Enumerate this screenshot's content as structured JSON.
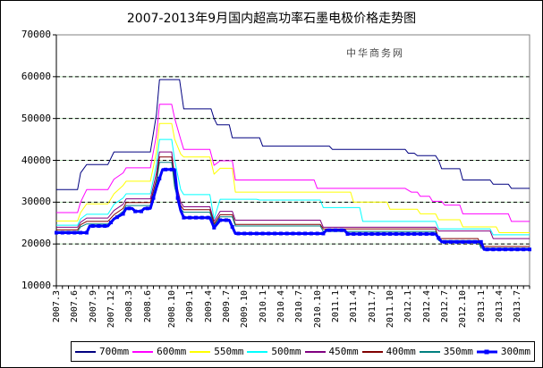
{
  "chart_data": {
    "type": "line",
    "title": "2007-2013年9月国内超高功率石墨电极价格走势图",
    "watermark": "中华商务网",
    "y_axis": {
      "min": 10000,
      "max": 70000,
      "step": 10000,
      "tick_labels": [
        "70000",
        "60000",
        "50000",
        "40000",
        "30000",
        "20000",
        "10000"
      ],
      "gridlines": [
        20000,
        30000,
        40000,
        50000,
        60000
      ],
      "grid_style": "dashed-black-over-pale-green"
    },
    "x_axis": {
      "unit": "month-index from 2007.3",
      "total_months": 78,
      "minor_tick_every": 1,
      "labels": [
        {
          "text": "2007.3",
          "m": 0
        },
        {
          "text": "2007.6",
          "m": 3
        },
        {
          "text": "2007.9",
          "m": 6
        },
        {
          "text": "2007.12",
          "m": 9
        },
        {
          "text": "2008.3",
          "m": 12
        },
        {
          "text": "2008.6",
          "m": 15
        },
        {
          "text": "2008.10",
          "m": 19
        },
        {
          "text": "2009.1",
          "m": 22
        },
        {
          "text": "2009.4",
          "m": 25
        },
        {
          "text": "2009.7",
          "m": 28
        },
        {
          "text": "2009.10",
          "m": 31
        },
        {
          "text": "2010.1",
          "m": 34
        },
        {
          "text": "2010.4",
          "m": 37
        },
        {
          "text": "2010.7",
          "m": 40
        },
        {
          "text": "2010.10",
          "m": 43
        },
        {
          "text": "2011.1",
          "m": 46
        },
        {
          "text": "2011.4",
          "m": 49
        },
        {
          "text": "2011.7",
          "m": 52
        },
        {
          "text": "2011.10",
          "m": 55
        },
        {
          "text": "2012.1",
          "m": 58
        },
        {
          "text": "2012.4",
          "m": 61
        },
        {
          "text": "2012.7",
          "m": 64
        },
        {
          "text": "2012.10",
          "m": 67
        },
        {
          "text": "2013.1",
          "m": 70
        },
        {
          "text": "2013.4",
          "m": 73
        },
        {
          "text": "2013.7",
          "m": 76
        }
      ]
    },
    "legend": {
      "position": "bottom"
    },
    "series": [
      {
        "name": "700mm",
        "color": "#000080",
        "width": 1,
        "marker": false,
        "points": [
          [
            0,
            33000
          ],
          [
            3.5,
            33000
          ],
          [
            4,
            37000
          ],
          [
            5,
            39000
          ],
          [
            8.5,
            39000
          ],
          [
            9.5,
            42000
          ],
          [
            15.5,
            42000
          ],
          [
            16.5,
            51000
          ],
          [
            17,
            59300
          ],
          [
            20.3,
            59300
          ],
          [
            21,
            52300
          ],
          [
            25.5,
            52300
          ],
          [
            26,
            50000
          ],
          [
            26.5,
            48500
          ],
          [
            28.5,
            48500
          ],
          [
            29,
            45400
          ],
          [
            33.5,
            45400
          ],
          [
            34,
            43400
          ],
          [
            45,
            43400
          ],
          [
            45.5,
            42600
          ],
          [
            57.5,
            42600
          ],
          [
            58,
            41700
          ],
          [
            59,
            41700
          ],
          [
            59.5,
            41100
          ],
          [
            62.5,
            41100
          ],
          [
            63,
            40000
          ],
          [
            63.5,
            38000
          ],
          [
            66.5,
            38000
          ],
          [
            67,
            35300
          ],
          [
            71.5,
            35300
          ],
          [
            72,
            34300
          ],
          [
            74.5,
            34300
          ],
          [
            75,
            33300
          ],
          [
            78,
            33300
          ]
        ]
      },
      {
        "name": "600mm",
        "color": "#FF00FF",
        "width": 1,
        "marker": false,
        "points": [
          [
            0,
            27500
          ],
          [
            3.5,
            27500
          ],
          [
            4,
            30000
          ],
          [
            5,
            33000
          ],
          [
            8.5,
            33000
          ],
          [
            9.5,
            35500
          ],
          [
            11,
            37000
          ],
          [
            11.5,
            38200
          ],
          [
            15.5,
            38200
          ],
          [
            16.5,
            46000
          ],
          [
            17,
            53400
          ],
          [
            19,
            53400
          ],
          [
            19.5,
            50000
          ],
          [
            20.5,
            45000
          ],
          [
            21,
            42600
          ],
          [
            25.3,
            42600
          ],
          [
            26,
            38800
          ],
          [
            27,
            39900
          ],
          [
            29,
            39900
          ],
          [
            29.5,
            35300
          ],
          [
            42.5,
            35300
          ],
          [
            43,
            33300
          ],
          [
            57.5,
            33300
          ],
          [
            58.5,
            32400
          ],
          [
            59.5,
            32400
          ],
          [
            60,
            31400
          ],
          [
            61.5,
            31400
          ],
          [
            62,
            30200
          ],
          [
            63.5,
            30200
          ],
          [
            64,
            29300
          ],
          [
            66.5,
            29300
          ],
          [
            67,
            27200
          ],
          [
            74.5,
            27200
          ],
          [
            75,
            25400
          ],
          [
            78,
            25400
          ]
        ]
      },
      {
        "name": "550mm",
        "color": "#FFFF00",
        "width": 1,
        "marker": false,
        "points": [
          [
            0,
            25500
          ],
          [
            3.5,
            25500
          ],
          [
            4,
            27500
          ],
          [
            5,
            29600
          ],
          [
            8.5,
            29600
          ],
          [
            9.5,
            32000
          ],
          [
            11,
            34000
          ],
          [
            11.5,
            35000
          ],
          [
            15.5,
            35000
          ],
          [
            16.5,
            42000
          ],
          [
            17,
            48800
          ],
          [
            19,
            48800
          ],
          [
            19.5,
            45000
          ],
          [
            20.5,
            41500
          ],
          [
            21,
            40800
          ],
          [
            25.3,
            40800
          ],
          [
            26,
            36700
          ],
          [
            27,
            38100
          ],
          [
            29,
            38100
          ],
          [
            29.5,
            32400
          ],
          [
            48.5,
            32400
          ],
          [
            49,
            30000
          ],
          [
            54.5,
            30000
          ],
          [
            55,
            28300
          ],
          [
            59.5,
            28300
          ],
          [
            60,
            27200
          ],
          [
            62.5,
            27200
          ],
          [
            63,
            25800
          ],
          [
            66.5,
            25800
          ],
          [
            67,
            24100
          ],
          [
            72.5,
            24100
          ],
          [
            73,
            22700
          ],
          [
            78,
            22700
          ]
        ]
      },
      {
        "name": "500mm",
        "color": "#00FFFF",
        "width": 1,
        "marker": false,
        "points": [
          [
            0,
            24500
          ],
          [
            3.5,
            24500
          ],
          [
            4,
            26000
          ],
          [
            5,
            27100
          ],
          [
            8.5,
            27100
          ],
          [
            9.5,
            29500
          ],
          [
            11,
            31000
          ],
          [
            11.5,
            32000
          ],
          [
            15.5,
            32000
          ],
          [
            16.5,
            39000
          ],
          [
            17,
            45000
          ],
          [
            19,
            45000
          ],
          [
            19.5,
            40000
          ],
          [
            20.5,
            33000
          ],
          [
            21,
            31800
          ],
          [
            25.3,
            31800
          ],
          [
            26,
            26000
          ],
          [
            27,
            30700
          ],
          [
            33,
            30700
          ],
          [
            33.5,
            30500
          ],
          [
            43.5,
            30500
          ],
          [
            44,
            28700
          ],
          [
            50,
            28700
          ],
          [
            50.5,
            25400
          ],
          [
            62.5,
            25400
          ],
          [
            63,
            23600
          ],
          [
            71.5,
            23600
          ],
          [
            72,
            22200
          ],
          [
            78,
            22200
          ]
        ]
      },
      {
        "name": "450mm",
        "color": "#800080",
        "width": 1,
        "marker": false,
        "points": [
          [
            0,
            24000
          ],
          [
            3.5,
            24000
          ],
          [
            4,
            25200
          ],
          [
            5,
            26200
          ],
          [
            8.5,
            26200
          ],
          [
            9.5,
            28000
          ],
          [
            11,
            29500
          ],
          [
            11.5,
            30800
          ],
          [
            15.5,
            30800
          ],
          [
            16.5,
            37000
          ],
          [
            17,
            42000
          ],
          [
            19,
            42000
          ],
          [
            19.5,
            36000
          ],
          [
            20.5,
            30000
          ],
          [
            21,
            28900
          ],
          [
            25.3,
            28900
          ],
          [
            26,
            25400
          ],
          [
            27,
            27800
          ],
          [
            29,
            27800
          ],
          [
            29.5,
            25700
          ],
          [
            43.5,
            25700
          ],
          [
            44,
            24000
          ],
          [
            62.5,
            24000
          ],
          [
            63,
            23100
          ],
          [
            71.5,
            23100
          ],
          [
            72,
            21300
          ],
          [
            78,
            21300
          ]
        ]
      },
      {
        "name": "400mm",
        "color": "#800000",
        "width": 1,
        "marker": false,
        "points": [
          [
            0,
            23400
          ],
          [
            3.5,
            23400
          ],
          [
            4,
            24600
          ],
          [
            5,
            25400
          ],
          [
            8.5,
            25400
          ],
          [
            9.5,
            27000
          ],
          [
            11,
            28500
          ],
          [
            11.5,
            29900
          ],
          [
            15.5,
            29900
          ],
          [
            16.5,
            35500
          ],
          [
            17,
            40800
          ],
          [
            19,
            40800
          ],
          [
            19.5,
            34500
          ],
          [
            20.5,
            29200
          ],
          [
            21,
            28200
          ],
          [
            25.3,
            28200
          ],
          [
            26,
            24800
          ],
          [
            27,
            27000
          ],
          [
            29,
            27000
          ],
          [
            29.5,
            24700
          ],
          [
            43.5,
            24700
          ],
          [
            44,
            23600
          ],
          [
            62.5,
            23600
          ],
          [
            63,
            21300
          ],
          [
            69.5,
            21300
          ],
          [
            70,
            19400
          ],
          [
            78,
            19400
          ]
        ]
      },
      {
        "name": "350mm",
        "color": "#008080",
        "width": 1,
        "marker": false,
        "points": [
          [
            0,
            23000
          ],
          [
            3.5,
            23000
          ],
          [
            4,
            24100
          ],
          [
            5,
            24800
          ],
          [
            8.5,
            24800
          ],
          [
            9.5,
            26200
          ],
          [
            11,
            27800
          ],
          [
            11.5,
            29200
          ],
          [
            15.5,
            29200
          ],
          [
            16.5,
            34500
          ],
          [
            17,
            39500
          ],
          [
            19,
            39500
          ],
          [
            19.5,
            33500
          ],
          [
            20.5,
            28400
          ],
          [
            21,
            27600
          ],
          [
            25.3,
            27600
          ],
          [
            26,
            24400
          ],
          [
            27,
            26500
          ],
          [
            29,
            26500
          ],
          [
            29.5,
            24300
          ],
          [
            43.5,
            24300
          ],
          [
            44,
            23000
          ],
          [
            62.5,
            23000
          ],
          [
            63,
            20800
          ],
          [
            69.5,
            20800
          ],
          [
            70,
            19000
          ],
          [
            78,
            19000
          ]
        ]
      },
      {
        "name": "300mm",
        "color": "#0000FF",
        "width": 3,
        "marker": true,
        "points": [
          [
            0,
            22700
          ],
          [
            5,
            22700
          ],
          [
            5.5,
            24300
          ],
          [
            8.5,
            24300
          ],
          [
            9.5,
            26000
          ],
          [
            11,
            27200
          ],
          [
            11.5,
            28500
          ],
          [
            12.5,
            28500
          ],
          [
            13,
            27800
          ],
          [
            14,
            27800
          ],
          [
            14.5,
            28500
          ],
          [
            15.5,
            28500
          ],
          [
            16.5,
            33500
          ],
          [
            17.5,
            37800
          ],
          [
            19.5,
            37800
          ],
          [
            20,
            31000
          ],
          [
            20.5,
            28000
          ],
          [
            21,
            26300
          ],
          [
            25.3,
            26300
          ],
          [
            26,
            23900
          ],
          [
            27,
            25700
          ],
          [
            28.5,
            25700
          ],
          [
            29.5,
            22500
          ],
          [
            44,
            22500
          ],
          [
            44.5,
            23300
          ],
          [
            47.5,
            23300
          ],
          [
            48,
            22400
          ],
          [
            62.5,
            22400
          ],
          [
            63.5,
            20500
          ],
          [
            70,
            20500
          ],
          [
            70.5,
            18700
          ],
          [
            78,
            18700
          ]
        ]
      }
    ],
    "colors": {
      "plot_border": "#808080",
      "axis": "#000000",
      "grid_dash": "#000000",
      "grid_under": "#b9e2b9",
      "text": "#000000"
    }
  }
}
